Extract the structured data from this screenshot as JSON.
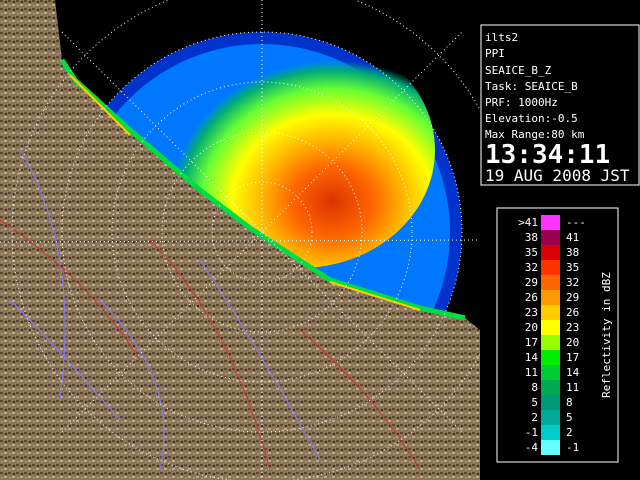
{
  "info": {
    "station": "ilts2",
    "mode": "PPI",
    "product": "SEAICE_B_Z",
    "task": "Task: SEAICE_B",
    "prf": "PRF: 1000Hz",
    "elevation": "Elevation:-0.5",
    "max_range": "Max Range:80 km",
    "time": "13:34:11",
    "date": "19 AUG 2008 JST"
  },
  "legend": {
    "title": "Reflectivity in dBZ",
    "rows": [
      {
        "low": ">41",
        "high": "---",
        "color": "#ff33ff"
      },
      {
        "low": "38",
        "high": "41",
        "color": "#99004d"
      },
      {
        "low": "35",
        "high": "38",
        "color": "#dd0000"
      },
      {
        "low": "32",
        "high": "35",
        "color": "#ff3300"
      },
      {
        "low": "29",
        "high": "32",
        "color": "#ff6600"
      },
      {
        "low": "26",
        "high": "29",
        "color": "#ff9900"
      },
      {
        "low": "23",
        "high": "26",
        "color": "#ffcc00"
      },
      {
        "low": "20",
        "high": "23",
        "color": "#ffff00"
      },
      {
        "low": "17",
        "high": "20",
        "color": "#99ff00"
      },
      {
        "low": "14",
        "high": "17",
        "color": "#00ee00"
      },
      {
        "low": "11",
        "high": "14",
        "color": "#00cc33"
      },
      {
        "low": "8",
        "high": "11",
        "color": "#00aa55"
      },
      {
        "low": "5",
        "high": "8",
        "color": "#009977"
      },
      {
        "low": "2",
        "high": "5",
        "color": "#00aa99"
      },
      {
        "low": "-1",
        "high": "2",
        "color": "#00cccc"
      },
      {
        "low": "-4",
        "high": "-1",
        "color": "#66ffff"
      }
    ]
  }
}
